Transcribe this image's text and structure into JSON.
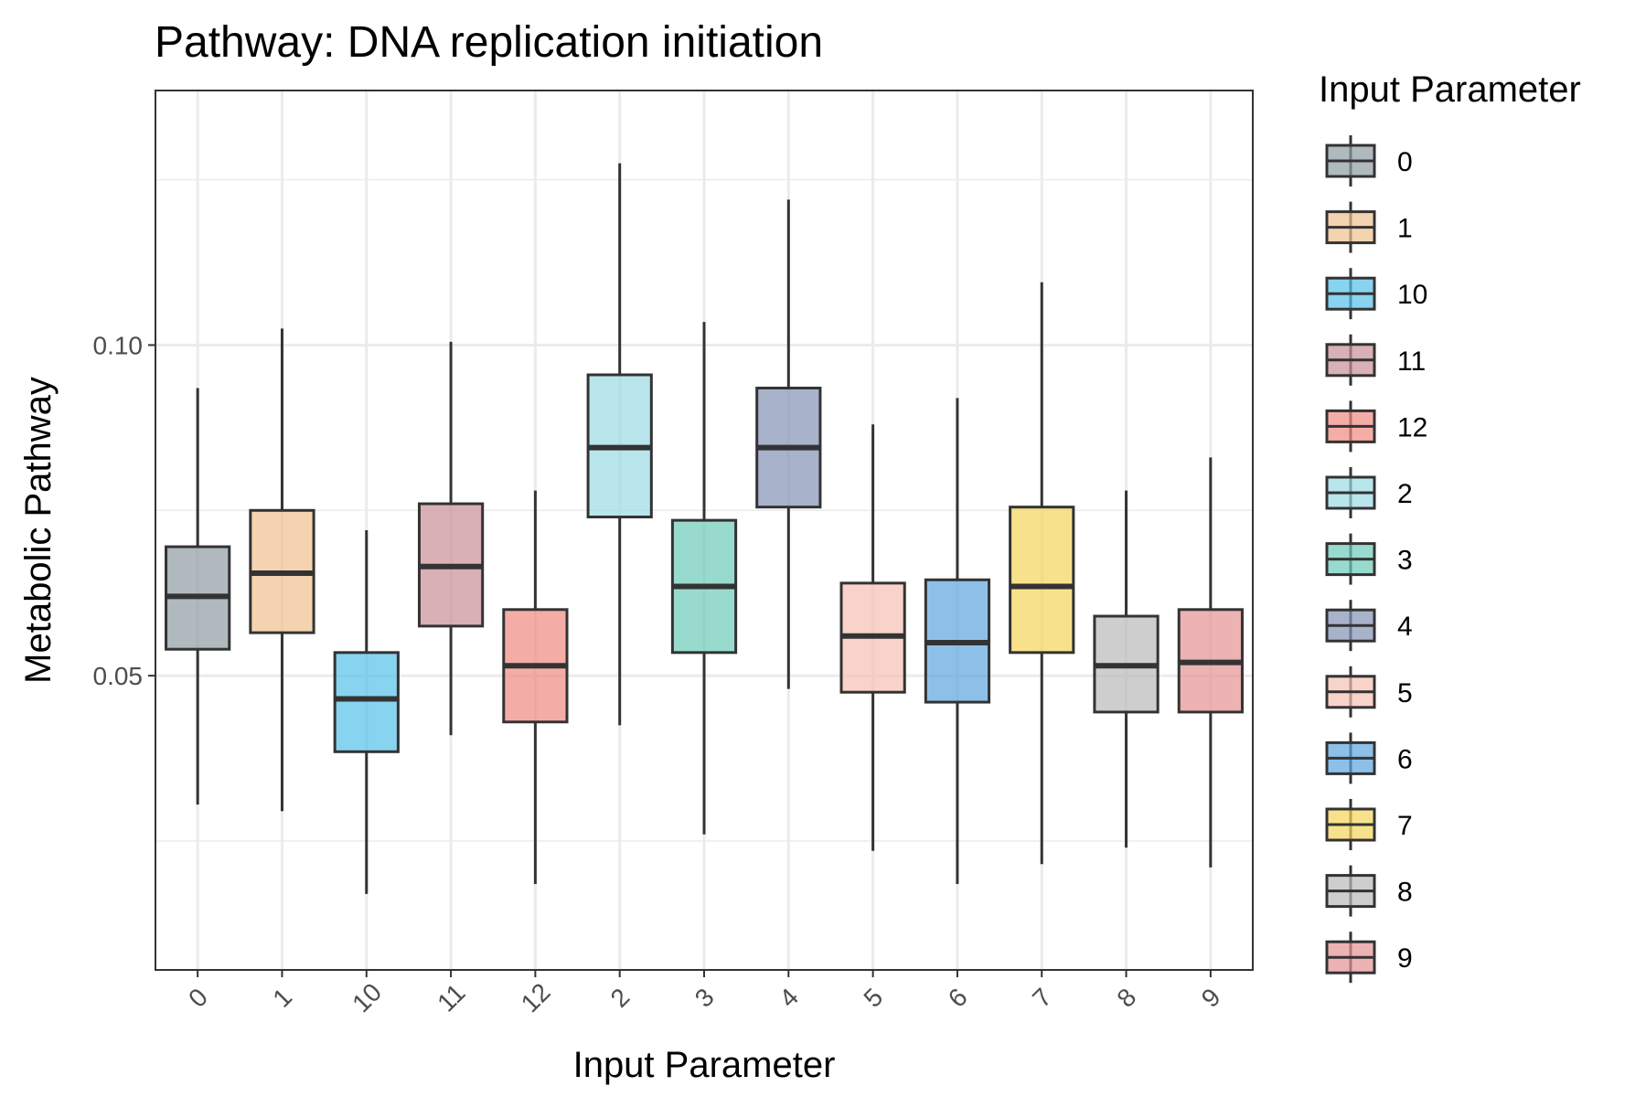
{
  "chart_data": {
    "type": "box",
    "title": "Pathway: DNA replication initiation",
    "xlabel": "Input Parameter",
    "ylabel": "Metabolic Pathway",
    "ylim": [
      0.0055,
      0.1385
    ],
    "yticks": [
      0.05,
      0.1
    ],
    "ytick_labels": [
      "0.05",
      "0.10"
    ],
    "grid": true,
    "legend": {
      "title": "Input Parameter",
      "placement": "right"
    },
    "categories": [
      "0",
      "1",
      "10",
      "11",
      "12",
      "2",
      "3",
      "4",
      "5",
      "6",
      "7",
      "8",
      "9"
    ],
    "colors": [
      "#8E9CA3",
      "#F0C08E",
      "#56C1E8",
      "#C88E97",
      "#F08A80",
      "#9BDAE6",
      "#6CCBB8",
      "#8592B5",
      "#F5C0B2",
      "#5DA5DE",
      "#F3D45A",
      "#B9B9B9",
      "#E49294"
    ],
    "boxes": [
      {
        "category": "0",
        "whisker_low": 0.0305,
        "q1": 0.054,
        "median": 0.062,
        "q3": 0.0695,
        "whisker_high": 0.0935
      },
      {
        "category": "1",
        "whisker_low": 0.0295,
        "q1": 0.0565,
        "median": 0.0655,
        "q3": 0.075,
        "whisker_high": 0.1025
      },
      {
        "category": "10",
        "whisker_low": 0.017,
        "q1": 0.0385,
        "median": 0.0465,
        "q3": 0.0535,
        "whisker_high": 0.072
      },
      {
        "category": "11",
        "whisker_low": 0.041,
        "q1": 0.0575,
        "median": 0.0665,
        "q3": 0.076,
        "whisker_high": 0.1005
      },
      {
        "category": "12",
        "whisker_low": 0.0185,
        "q1": 0.043,
        "median": 0.0515,
        "q3": 0.06,
        "whisker_high": 0.078
      },
      {
        "category": "2",
        "whisker_low": 0.0425,
        "q1": 0.074,
        "median": 0.0845,
        "q3": 0.0955,
        "whisker_high": 0.1275
      },
      {
        "category": "3",
        "whisker_low": 0.026,
        "q1": 0.0535,
        "median": 0.0635,
        "q3": 0.0735,
        "whisker_high": 0.1035
      },
      {
        "category": "4",
        "whisker_low": 0.048,
        "q1": 0.0755,
        "median": 0.0845,
        "q3": 0.0935,
        "whisker_high": 0.122
      },
      {
        "category": "5",
        "whisker_low": 0.0235,
        "q1": 0.0475,
        "median": 0.056,
        "q3": 0.064,
        "whisker_high": 0.088
      },
      {
        "category": "6",
        "whisker_low": 0.0185,
        "q1": 0.046,
        "median": 0.055,
        "q3": 0.0645,
        "whisker_high": 0.092
      },
      {
        "category": "7",
        "whisker_low": 0.0215,
        "q1": 0.0535,
        "median": 0.0635,
        "q3": 0.0755,
        "whisker_high": 0.1095
      },
      {
        "category": "8",
        "whisker_low": 0.024,
        "q1": 0.0445,
        "median": 0.0515,
        "q3": 0.059,
        "whisker_high": 0.078
      },
      {
        "category": "9",
        "whisker_low": 0.021,
        "q1": 0.0445,
        "median": 0.052,
        "q3": 0.06,
        "whisker_high": 0.083
      }
    ]
  }
}
